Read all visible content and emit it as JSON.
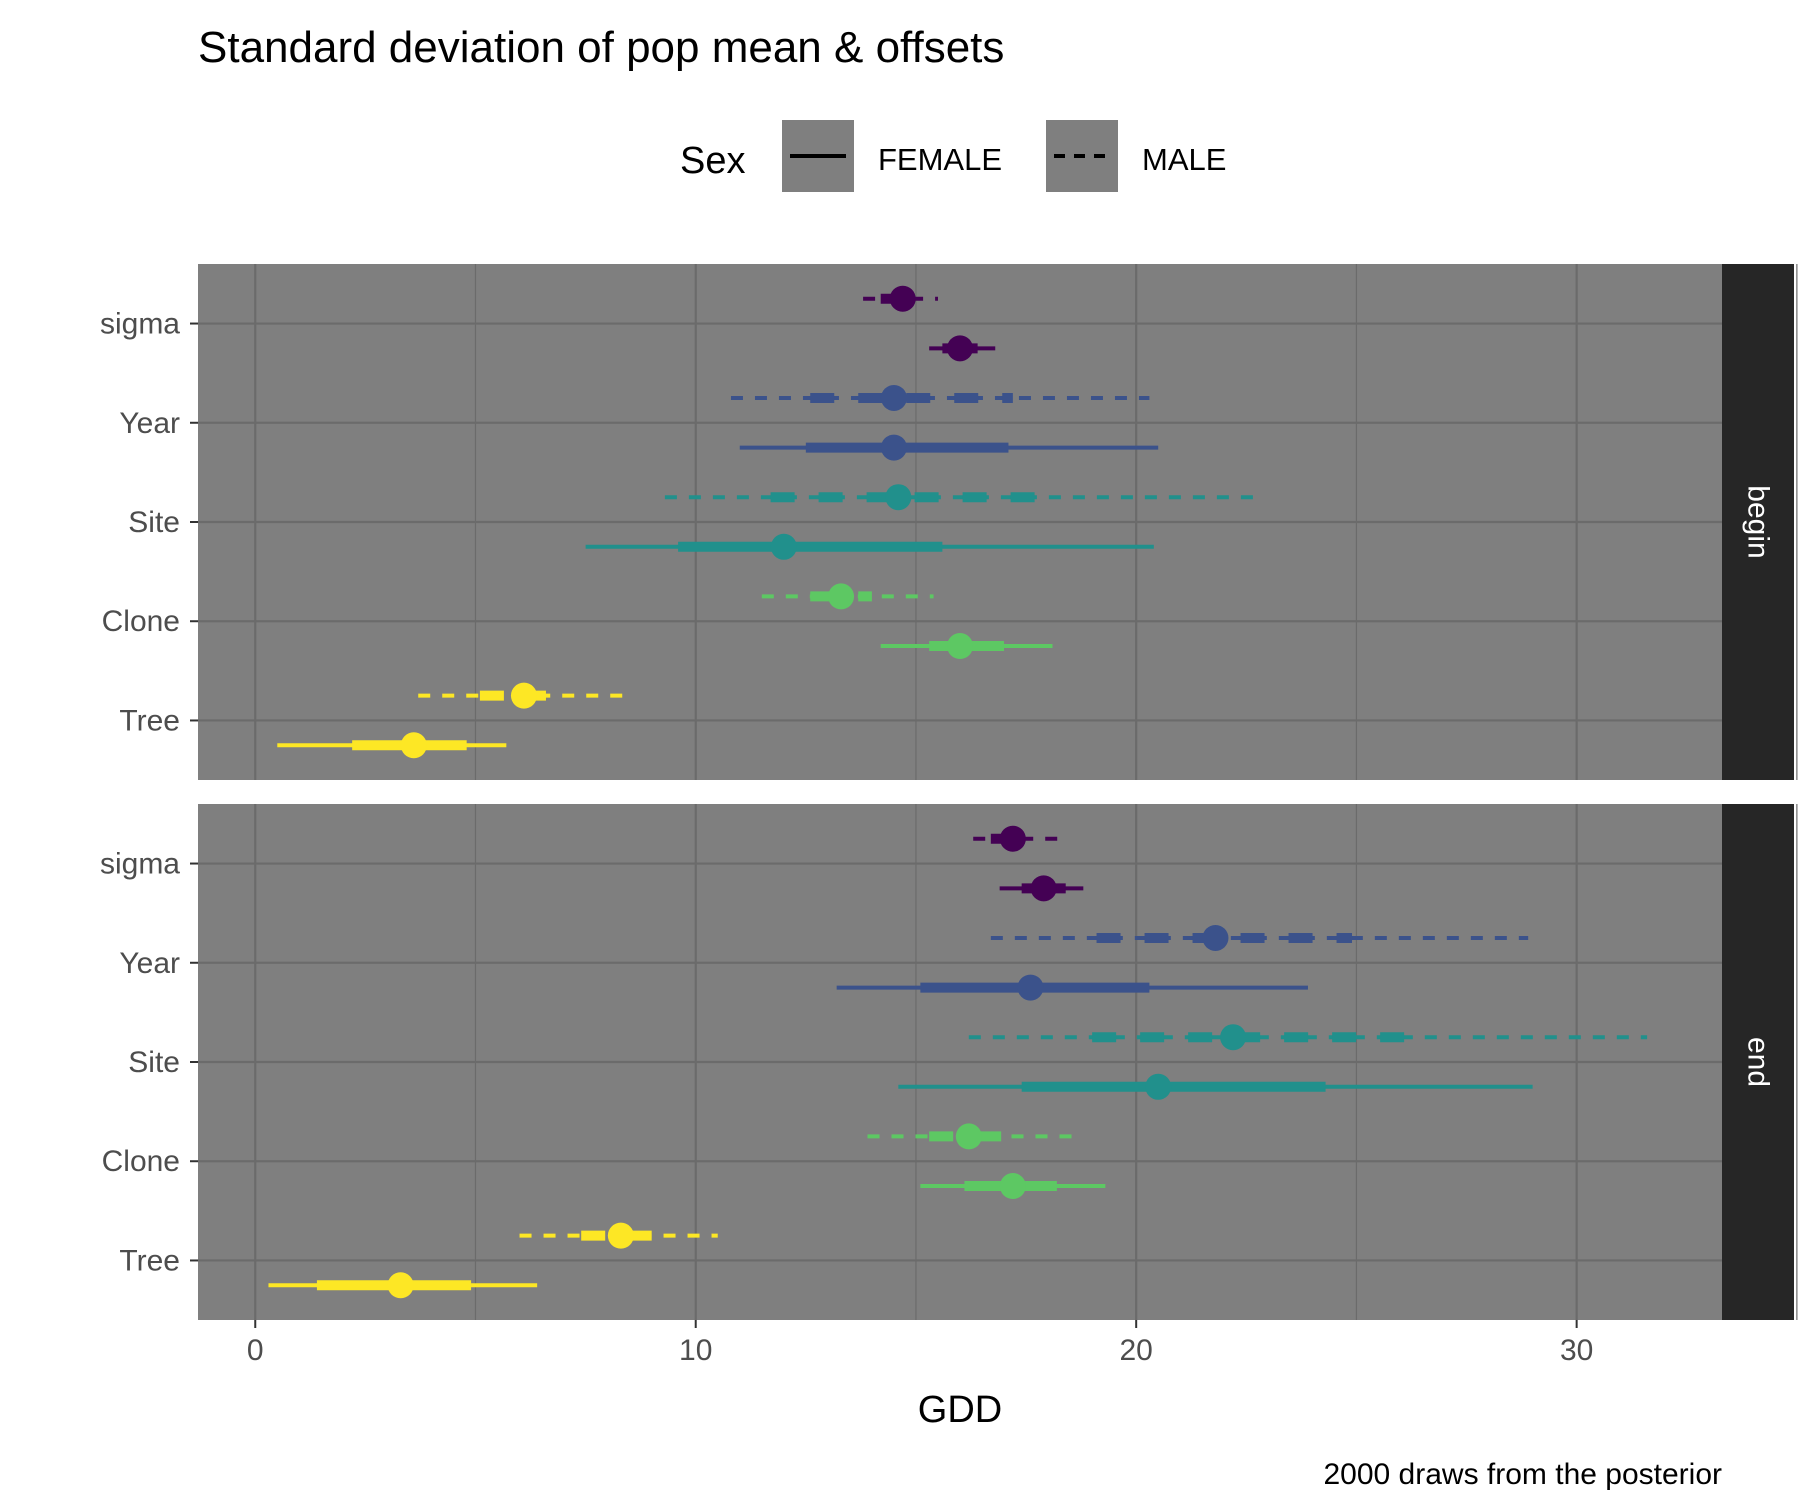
{
  "chart_data": {
    "type": "interval",
    "title": "Standard deviation of pop mean & offsets",
    "caption": "2000 draws from the posterior",
    "xlabel": "GDD",
    "xlim": [
      -1.3,
      33.3
    ],
    "xticks": [
      0,
      10,
      20,
      30
    ],
    "grid": true,
    "legend": {
      "title": "Sex",
      "placement": "top",
      "entries": [
        {
          "label": "FEMALE",
          "linetype": "solid"
        },
        {
          "label": "MALE",
          "linetype": "dashed"
        }
      ]
    },
    "y_categories": [
      "sigma",
      "Year",
      "Site",
      "Clone",
      "Tree"
    ],
    "colors": {
      "sigma": "#440154",
      "Year": "#3b528b",
      "Site": "#21908c",
      "Clone": "#5dc863",
      "Tree": "#fde725",
      "panel_bg": "#7f7f7f",
      "strip_bg": "#262626",
      "grid": "#6b6b6b"
    },
    "panels": [
      {
        "strip": "begin",
        "intervals": [
          {
            "param": "sigma",
            "sex": "MALE",
            "point": 14.7,
            "inner": [
              14.2,
              15.2
            ],
            "outer": [
              13.8,
              15.5
            ]
          },
          {
            "param": "sigma",
            "sex": "FEMALE",
            "point": 16.0,
            "inner": [
              15.6,
              16.4
            ],
            "outer": [
              15.3,
              16.8
            ]
          },
          {
            "param": "Year",
            "sex": "MALE",
            "point": 14.5,
            "inner": [
              12.6,
              17.2
            ],
            "outer": [
              10.8,
              20.3
            ]
          },
          {
            "param": "Year",
            "sex": "FEMALE",
            "point": 14.5,
            "inner": [
              12.5,
              17.1
            ],
            "outer": [
              11.0,
              20.5
            ]
          },
          {
            "param": "Site",
            "sex": "MALE",
            "point": 14.6,
            "inner": [
              11.7,
              17.8
            ],
            "outer": [
              9.3,
              22.7
            ]
          },
          {
            "param": "Site",
            "sex": "FEMALE",
            "point": 12.0,
            "inner": [
              9.6,
              15.6
            ],
            "outer": [
              7.5,
              20.4
            ]
          },
          {
            "param": "Clone",
            "sex": "MALE",
            "point": 13.3,
            "inner": [
              12.6,
              14.0
            ],
            "outer": [
              11.5,
              15.4
            ]
          },
          {
            "param": "Clone",
            "sex": "FEMALE",
            "point": 16.0,
            "inner": [
              15.3,
              17.0
            ],
            "outer": [
              14.2,
              18.1
            ]
          },
          {
            "param": "Tree",
            "sex": "MALE",
            "point": 6.1,
            "inner": [
              5.1,
              6.6
            ],
            "outer": [
              3.7,
              8.4
            ]
          },
          {
            "param": "Tree",
            "sex": "FEMALE",
            "point": 3.6,
            "inner": [
              2.2,
              4.8
            ],
            "outer": [
              0.5,
              5.7
            ]
          }
        ]
      },
      {
        "strip": "end",
        "intervals": [
          {
            "param": "sigma",
            "sex": "MALE",
            "point": 17.2,
            "inner": [
              16.7,
              17.7
            ],
            "outer": [
              16.3,
              18.3
            ]
          },
          {
            "param": "sigma",
            "sex": "FEMALE",
            "point": 17.9,
            "inner": [
              17.4,
              18.4
            ],
            "outer": [
              16.9,
              18.8
            ]
          },
          {
            "param": "Year",
            "sex": "MALE",
            "point": 21.8,
            "inner": [
              19.1,
              24.9
            ],
            "outer": [
              16.7,
              28.9
            ]
          },
          {
            "param": "Year",
            "sex": "FEMALE",
            "point": 17.6,
            "inner": [
              15.1,
              20.3
            ],
            "outer": [
              13.2,
              23.9
            ]
          },
          {
            "param": "Site",
            "sex": "MALE",
            "point": 22.2,
            "inner": [
              19.0,
              26.2
            ],
            "outer": [
              16.2,
              31.6
            ]
          },
          {
            "param": "Site",
            "sex": "FEMALE",
            "point": 20.5,
            "inner": [
              17.4,
              24.3
            ],
            "outer": [
              14.6,
              29.0
            ]
          },
          {
            "param": "Clone",
            "sex": "MALE",
            "point": 16.2,
            "inner": [
              15.3,
              17.4
            ],
            "outer": [
              13.9,
              18.7
            ]
          },
          {
            "param": "Clone",
            "sex": "FEMALE",
            "point": 17.2,
            "inner": [
              16.1,
              18.2
            ],
            "outer": [
              15.1,
              19.3
            ]
          },
          {
            "param": "Tree",
            "sex": "MALE",
            "point": 8.3,
            "inner": [
              7.4,
              9.0
            ],
            "outer": [
              6.0,
              10.5
            ]
          },
          {
            "param": "Tree",
            "sex": "FEMALE",
            "point": 3.3,
            "inner": [
              1.4,
              4.9
            ],
            "outer": [
              0.3,
              6.4
            ]
          }
        ]
      }
    ]
  }
}
